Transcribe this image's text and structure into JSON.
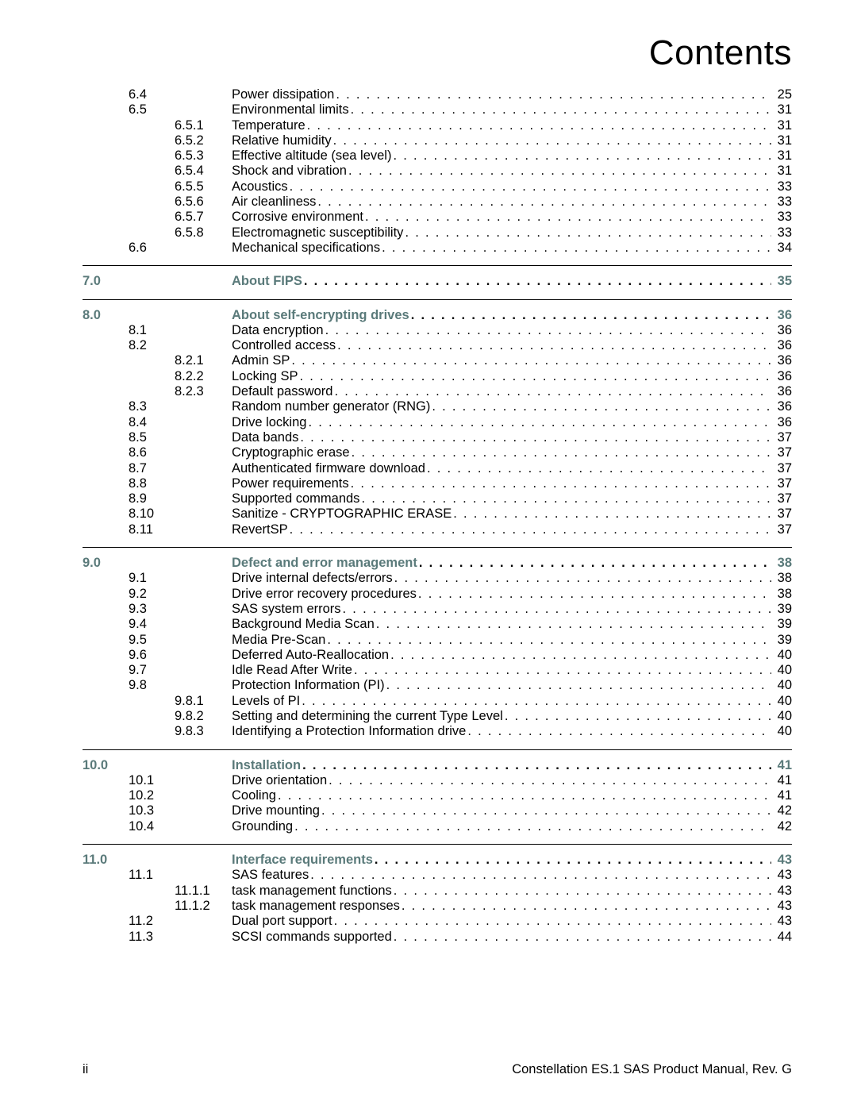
{
  "title": "Contents",
  "footer": {
    "left": "ii",
    "right": "Constellation ES.1 SAS Product Manual, Rev. G"
  },
  "colors": {
    "heading": "#5a7a7a",
    "text": "#000000",
    "bg": "#ffffff"
  },
  "rows": [
    {
      "level": 1,
      "num": "6.4",
      "title": "Power dissipation",
      "page": "25"
    },
    {
      "level": 1,
      "num": "6.5",
      "title": "Environmental limits",
      "page": "31"
    },
    {
      "level": 2,
      "num": "6.5.1",
      "title": "Temperature",
      "page": "31"
    },
    {
      "level": 2,
      "num": "6.5.2",
      "title": "Relative humidity",
      "page": "31"
    },
    {
      "level": 2,
      "num": "6.5.3",
      "title": "Effective altitude (sea level)",
      "page": "31"
    },
    {
      "level": 2,
      "num": "6.5.4",
      "title": "Shock and vibration",
      "page": "31"
    },
    {
      "level": 2,
      "num": "6.5.5",
      "title": "Acoustics",
      "page": "33"
    },
    {
      "level": 2,
      "num": "6.5.6",
      "title": "Air cleanliness",
      "page": "33"
    },
    {
      "level": 2,
      "num": "6.5.7",
      "title": "Corrosive environment",
      "page": "33"
    },
    {
      "level": 2,
      "num": "6.5.8",
      "title": "Electromagnetic susceptibility",
      "page": "33"
    },
    {
      "level": 1,
      "num": "6.6",
      "title": "Mechanical specifications",
      "page": "34"
    },
    {
      "hr": true
    },
    {
      "level": 0,
      "num": "7.0",
      "title": "About FIPS",
      "page": "35"
    },
    {
      "hr": true
    },
    {
      "level": 0,
      "num": "8.0",
      "title": "About self-encrypting drives",
      "page": "36"
    },
    {
      "level": 1,
      "num": "8.1",
      "title": "Data encryption",
      "page": "36"
    },
    {
      "level": 1,
      "num": "8.2",
      "title": "Controlled access",
      "page": "36"
    },
    {
      "level": 2,
      "num": "8.2.1",
      "title": "Admin SP",
      "page": "36"
    },
    {
      "level": 2,
      "num": "8.2.2",
      "title": "Locking SP",
      "page": "36"
    },
    {
      "level": 2,
      "num": "8.2.3",
      "title": "Default password",
      "page": "36"
    },
    {
      "level": 1,
      "num": "8.3",
      "title": "Random number generator (RNG)",
      "page": "36"
    },
    {
      "level": 1,
      "num": "8.4",
      "title": "Drive locking",
      "page": "36"
    },
    {
      "level": 1,
      "num": "8.5",
      "title": "Data bands",
      "page": "37"
    },
    {
      "level": 1,
      "num": "8.6",
      "title": "Cryptographic erase",
      "page": "37"
    },
    {
      "level": 1,
      "num": "8.7",
      "title": "Authenticated firmware download",
      "page": "37"
    },
    {
      "level": 1,
      "num": "8.8",
      "title": "Power requirements",
      "page": "37"
    },
    {
      "level": 1,
      "num": "8.9",
      "title": "Supported commands",
      "page": "37"
    },
    {
      "level": 1,
      "num": "8.10",
      "title": "Sanitize - CRYPTOGRAPHIC ERASE",
      "page": "37"
    },
    {
      "level": 1,
      "num": "8.11",
      "title": "RevertSP",
      "page": "37"
    },
    {
      "hr": true
    },
    {
      "level": 0,
      "num": "9.0",
      "title": "Defect and error management",
      "page": "38"
    },
    {
      "level": 1,
      "num": "9.1",
      "title": "Drive internal defects/errors",
      "page": "38"
    },
    {
      "level": 1,
      "num": "9.2",
      "title": "Drive error recovery procedures",
      "page": "38"
    },
    {
      "level": 1,
      "num": "9.3",
      "title": "SAS system errors",
      "page": "39"
    },
    {
      "level": 1,
      "num": "9.4",
      "title": "Background Media Scan",
      "page": "39"
    },
    {
      "level": 1,
      "num": "9.5",
      "title": "Media Pre-Scan",
      "page": "39"
    },
    {
      "level": 1,
      "num": "9.6",
      "title": "Deferred Auto-Reallocation",
      "page": "40"
    },
    {
      "level": 1,
      "num": "9.7",
      "title": "Idle Read After Write",
      "page": "40"
    },
    {
      "level": 1,
      "num": "9.8",
      "title": "Protection Information (PI)",
      "page": "40"
    },
    {
      "level": 2,
      "num": "9.8.1",
      "title": "Levels of PI",
      "page": "40"
    },
    {
      "level": 2,
      "num": "9.8.2",
      "title": "Setting and determining the current Type Level",
      "page": "40"
    },
    {
      "level": 2,
      "num": "9.8.3",
      "title": "Identifying a Protection Information drive",
      "page": "40"
    },
    {
      "hr": true
    },
    {
      "level": 0,
      "num": "10.0",
      "title": "Installation",
      "page": "41"
    },
    {
      "level": 1,
      "num": "10.1",
      "title": "Drive orientation",
      "page": "41"
    },
    {
      "level": 1,
      "num": "10.2",
      "title": "Cooling",
      "page": "41"
    },
    {
      "level": 1,
      "num": "10.3",
      "title": "Drive mounting",
      "page": "42"
    },
    {
      "level": 1,
      "num": "10.4",
      "title": "Grounding",
      "page": "42"
    },
    {
      "hr": true
    },
    {
      "level": 0,
      "num": "11.0",
      "title": "Interface requirements",
      "page": "43"
    },
    {
      "level": 1,
      "num": "11.1",
      "title": "SAS features",
      "page": "43"
    },
    {
      "level": 2,
      "num": "11.1.1",
      "title": "task management functions",
      "page": "43"
    },
    {
      "level": 2,
      "num": "11.1.2",
      "title": "task management responses",
      "page": "43"
    },
    {
      "level": 1,
      "num": "11.2",
      "title": "Dual port support",
      "page": "43"
    },
    {
      "level": 1,
      "num": "11.3",
      "title": "SCSI commands supported",
      "page": "44"
    }
  ]
}
